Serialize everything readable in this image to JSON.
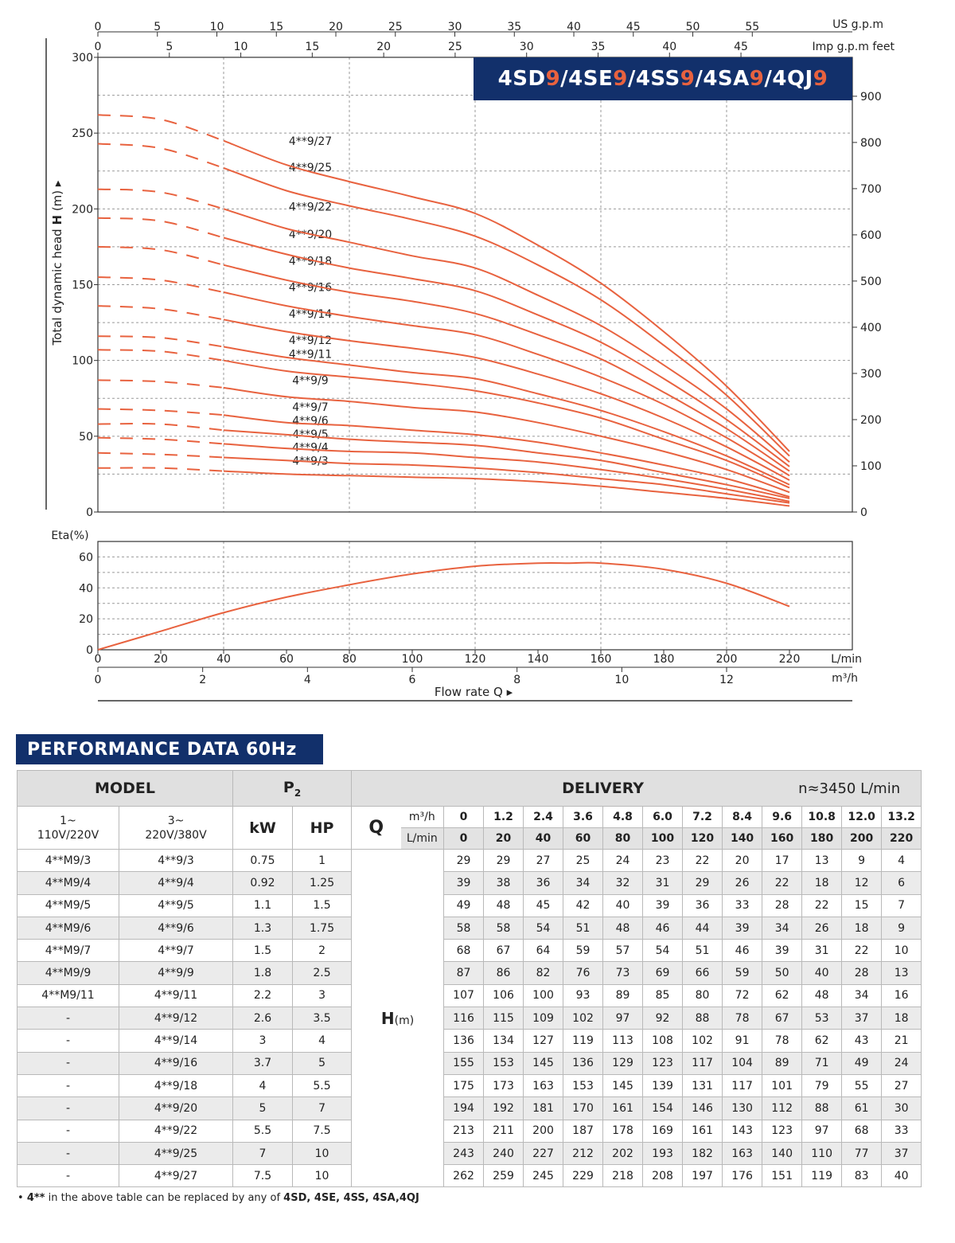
{
  "series_title": {
    "prefixes": [
      "4SD",
      "4SE",
      "4SS",
      "4SA",
      "4QJ"
    ],
    "suffix": "9",
    "separator": "/"
  },
  "chart_data": [
    {
      "type": "line",
      "ylabel_prefix": "Total dynamic head",
      "ylabel_bold": "H",
      "ylabel_unit": "(m)",
      "ylim": [
        0,
        300
      ],
      "yticks": [
        0,
        50,
        100,
        150,
        200,
        250,
        300
      ],
      "right_axis_ticks": [
        0,
        100,
        200,
        300,
        400,
        500,
        600,
        700,
        800,
        900
      ],
      "right_axis_label": "feet",
      "xlim_lmin": [
        0,
        240
      ],
      "top_axis_usgpm": {
        "label": "US g.p.m",
        "ticks": [
          0,
          5,
          10,
          15,
          20,
          25,
          30,
          35,
          40,
          45,
          50,
          55
        ]
      },
      "top_axis_impgpm": {
        "label": "Imp g.p.m",
        "ticks": [
          0,
          5,
          10,
          15,
          20,
          25,
          30,
          35,
          40,
          45
        ]
      },
      "dashed_until_lmin": 40,
      "x": [
        0,
        20,
        40,
        60,
        80,
        100,
        120,
        140,
        160,
        180,
        200,
        220
      ],
      "series": [
        {
          "name": "4**9/3",
          "values": [
            29,
            29,
            27,
            25,
            24,
            23,
            22,
            20,
            17,
            13,
            9,
            4
          ]
        },
        {
          "name": "4**9/4",
          "values": [
            39,
            38,
            36,
            34,
            32,
            31,
            29,
            26,
            22,
            18,
            12,
            6
          ]
        },
        {
          "name": "4**9/5",
          "values": [
            49,
            48,
            45,
            42,
            40,
            39,
            36,
            33,
            28,
            22,
            15,
            7
          ]
        },
        {
          "name": "4**9/6",
          "values": [
            58,
            58,
            54,
            51,
            48,
            46,
            44,
            39,
            34,
            26,
            18,
            9
          ]
        },
        {
          "name": "4**9/7",
          "values": [
            68,
            67,
            64,
            59,
            57,
            54,
            51,
            46,
            39,
            31,
            22,
            10
          ]
        },
        {
          "name": "4**9/9",
          "values": [
            87,
            86,
            82,
            76,
            73,
            69,
            66,
            59,
            50,
            40,
            28,
            13
          ]
        },
        {
          "name": "4**9/11",
          "values": [
            107,
            106,
            100,
            93,
            89,
            85,
            80,
            72,
            62,
            48,
            34,
            16
          ]
        },
        {
          "name": "4**9/12",
          "values": [
            116,
            115,
            109,
            102,
            97,
            92,
            88,
            78,
            67,
            53,
            37,
            18
          ]
        },
        {
          "name": "4**9/14",
          "values": [
            136,
            134,
            127,
            119,
            113,
            108,
            102,
            91,
            78,
            62,
            43,
            21
          ]
        },
        {
          "name": "4**9/16",
          "values": [
            155,
            153,
            145,
            136,
            129,
            123,
            117,
            104,
            89,
            71,
            49,
            24
          ]
        },
        {
          "name": "4**9/18",
          "values": [
            175,
            173,
            163,
            153,
            145,
            139,
            131,
            117,
            101,
            79,
            55,
            27
          ]
        },
        {
          "name": "4**9/20",
          "values": [
            194,
            192,
            181,
            170,
            161,
            154,
            146,
            130,
            112,
            88,
            61,
            30
          ]
        },
        {
          "name": "4**9/22",
          "values": [
            213,
            211,
            200,
            187,
            178,
            169,
            161,
            143,
            123,
            97,
            68,
            33
          ]
        },
        {
          "name": "4**9/25",
          "values": [
            243,
            240,
            227,
            212,
            202,
            193,
            182,
            163,
            140,
            110,
            77,
            37
          ]
        },
        {
          "name": "4**9/27",
          "values": [
            262,
            259,
            245,
            229,
            218,
            208,
            197,
            176,
            151,
            119,
            83,
            40
          ]
        }
      ],
      "color": "#e8623f"
    },
    {
      "type": "line",
      "ylabel": "Eta(%)",
      "ylim": [
        0,
        70
      ],
      "yticks": [
        0,
        20,
        40,
        60
      ],
      "xlim_lmin": [
        0,
        240
      ],
      "xticks_lmin": [
        0,
        20,
        40,
        60,
        80,
        100,
        120,
        140,
        160,
        180,
        200,
        220
      ],
      "xunit_lmin": "L/min",
      "xticks_m3h": [
        0,
        2,
        4,
        6,
        8,
        10,
        12
      ],
      "xunit_m3h": "m³/h",
      "xlabel": "Flow rate",
      "xlabel_symbol": "Q",
      "series": [
        {
          "x": [
            0,
            20,
            40,
            60,
            80,
            100,
            120,
            140,
            150,
            160,
            180,
            200,
            220
          ],
          "values": [
            0,
            12,
            24,
            34,
            42,
            49,
            54,
            56,
            56,
            56,
            52,
            43,
            28
          ]
        }
      ],
      "color": "#e8623f"
    }
  ],
  "perf": {
    "title": "PERFORMANCE DATA 60Hz",
    "model_label": "MODEL",
    "p2_label": "P",
    "p2_sub": "2",
    "delivery_label": "DELIVERY",
    "speed_note": "n≈3450 L/min",
    "col_1ph": "1~\n110V/220V",
    "col_1ph_a": "1~",
    "col_1ph_b": "110V/220V",
    "col_3ph_a": "3~",
    "col_3ph_b": "220V/380V",
    "kw_label": "kW",
    "hp_label": "HP",
    "q_label": "Q",
    "m3h_label": "m³/h",
    "lmin_label": "L/min",
    "h_label": "H",
    "h_unit": "(m)",
    "q_m3h": [
      "0",
      "1.2",
      "2.4",
      "3.6",
      "4.8",
      "6.0",
      "7.2",
      "8.4",
      "9.6",
      "10.8",
      "12.0",
      "13.2"
    ],
    "q_lmin": [
      "0",
      "20",
      "40",
      "60",
      "80",
      "100",
      "120",
      "140",
      "160",
      "180",
      "200",
      "220"
    ],
    "rows": [
      {
        "m1": "4**M9/3",
        "m3": "4**9/3",
        "kw": "0.75",
        "hp": "1",
        "h": [
          "29",
          "29",
          "27",
          "25",
          "24",
          "23",
          "22",
          "20",
          "17",
          "13",
          "9",
          "4"
        ]
      },
      {
        "m1": "4**M9/4",
        "m3": "4**9/4",
        "kw": "0.92",
        "hp": "1.25",
        "h": [
          "39",
          "38",
          "36",
          "34",
          "32",
          "31",
          "29",
          "26",
          "22",
          "18",
          "12",
          "6"
        ]
      },
      {
        "m1": "4**M9/5",
        "m3": "4**9/5",
        "kw": "1.1",
        "hp": "1.5",
        "h": [
          "49",
          "48",
          "45",
          "42",
          "40",
          "39",
          "36",
          "33",
          "28",
          "22",
          "15",
          "7"
        ]
      },
      {
        "m1": "4**M9/6",
        "m3": "4**9/6",
        "kw": "1.3",
        "hp": "1.75",
        "h": [
          "58",
          "58",
          "54",
          "51",
          "48",
          "46",
          "44",
          "39",
          "34",
          "26",
          "18",
          "9"
        ]
      },
      {
        "m1": "4**M9/7",
        "m3": "4**9/7",
        "kw": "1.5",
        "hp": "2",
        "h": [
          "68",
          "67",
          "64",
          "59",
          "57",
          "54",
          "51",
          "46",
          "39",
          "31",
          "22",
          "10"
        ]
      },
      {
        "m1": "4**M9/9",
        "m3": "4**9/9",
        "kw": "1.8",
        "hp": "2.5",
        "h": [
          "87",
          "86",
          "82",
          "76",
          "73",
          "69",
          "66",
          "59",
          "50",
          "40",
          "28",
          "13"
        ]
      },
      {
        "m1": "4**M9/11",
        "m3": "4**9/11",
        "kw": "2.2",
        "hp": "3",
        "h": [
          "107",
          "106",
          "100",
          "93",
          "89",
          "85",
          "80",
          "72",
          "62",
          "48",
          "34",
          "16"
        ]
      },
      {
        "m1": "-",
        "m3": "4**9/12",
        "kw": "2.6",
        "hp": "3.5",
        "h": [
          "116",
          "115",
          "109",
          "102",
          "97",
          "92",
          "88",
          "78",
          "67",
          "53",
          "37",
          "18"
        ]
      },
      {
        "m1": "-",
        "m3": "4**9/14",
        "kw": "3",
        "hp": "4",
        "h": [
          "136",
          "134",
          "127",
          "119",
          "113",
          "108",
          "102",
          "91",
          "78",
          "62",
          "43",
          "21"
        ]
      },
      {
        "m1": "-",
        "m3": "4**9/16",
        "kw": "3.7",
        "hp": "5",
        "h": [
          "155",
          "153",
          "145",
          "136",
          "129",
          "123",
          "117",
          "104",
          "89",
          "71",
          "49",
          "24"
        ]
      },
      {
        "m1": "-",
        "m3": "4**9/18",
        "kw": "4",
        "hp": "5.5",
        "h": [
          "175",
          "173",
          "163",
          "153",
          "145",
          "139",
          "131",
          "117",
          "101",
          "79",
          "55",
          "27"
        ]
      },
      {
        "m1": "-",
        "m3": "4**9/20",
        "kw": "5",
        "hp": "7",
        "h": [
          "194",
          "192",
          "181",
          "170",
          "161",
          "154",
          "146",
          "130",
          "112",
          "88",
          "61",
          "30"
        ]
      },
      {
        "m1": "-",
        "m3": "4**9/22",
        "kw": "5.5",
        "hp": "7.5",
        "h": [
          "213",
          "211",
          "200",
          "187",
          "178",
          "169",
          "161",
          "143",
          "123",
          "97",
          "68",
          "33"
        ]
      },
      {
        "m1": "-",
        "m3": "4**9/25",
        "kw": "7",
        "hp": "10",
        "h": [
          "243",
          "240",
          "227",
          "212",
          "202",
          "193",
          "182",
          "163",
          "140",
          "110",
          "77",
          "37"
        ]
      },
      {
        "m1": "-",
        "m3": "4**9/27",
        "kw": "7.5",
        "hp": "10",
        "h": [
          "262",
          "259",
          "245",
          "229",
          "218",
          "208",
          "197",
          "176",
          "151",
          "119",
          "83",
          "40"
        ]
      }
    ]
  },
  "footnote": {
    "bullet": "•",
    "bold1": "4**",
    "text": " in the above table can be replaced by any of ",
    "bold2": "4SD, 4SE, 4SS, 4SA,4QJ"
  }
}
